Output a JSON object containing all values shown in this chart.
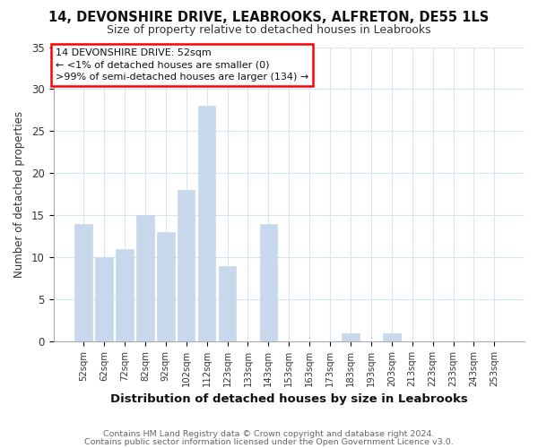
{
  "title": "14, DEVONSHIRE DRIVE, LEABROOKS, ALFRETON, DE55 1LS",
  "subtitle": "Size of property relative to detached houses in Leabrooks",
  "xlabel": "Distribution of detached houses by size in Leabrooks",
  "ylabel": "Number of detached properties",
  "bar_labels": [
    "52sqm",
    "62sqm",
    "72sqm",
    "82sqm",
    "92sqm",
    "102sqm",
    "112sqm",
    "123sqm",
    "133sqm",
    "143sqm",
    "153sqm",
    "163sqm",
    "173sqm",
    "183sqm",
    "193sqm",
    "203sqm",
    "213sqm",
    "223sqm",
    "233sqm",
    "243sqm",
    "253sqm"
  ],
  "bar_values": [
    14,
    10,
    11,
    15,
    13,
    18,
    28,
    9,
    0,
    14,
    0,
    0,
    0,
    1,
    0,
    1,
    0,
    0,
    0,
    0,
    0
  ],
  "bar_color": "#c8d8ec",
  "ylim": [
    0,
    35
  ],
  "yticks": [
    0,
    5,
    10,
    15,
    20,
    25,
    30,
    35
  ],
  "annotation_line1": "14 DEVONSHIRE DRIVE: 52sqm",
  "annotation_line2": "← <1% of detached houses are smaller (0)",
  "annotation_line3": ">99% of semi-detached houses are larger (134) →",
  "footnote1": "Contains HM Land Registry data © Crown copyright and database right 2024.",
  "footnote2": "Contains public sector information licensed under the Open Government Licence v3.0.",
  "grid_color": "#d8e4f0",
  "background_color": "#ffffff",
  "spine_color": "#aaaaaa"
}
